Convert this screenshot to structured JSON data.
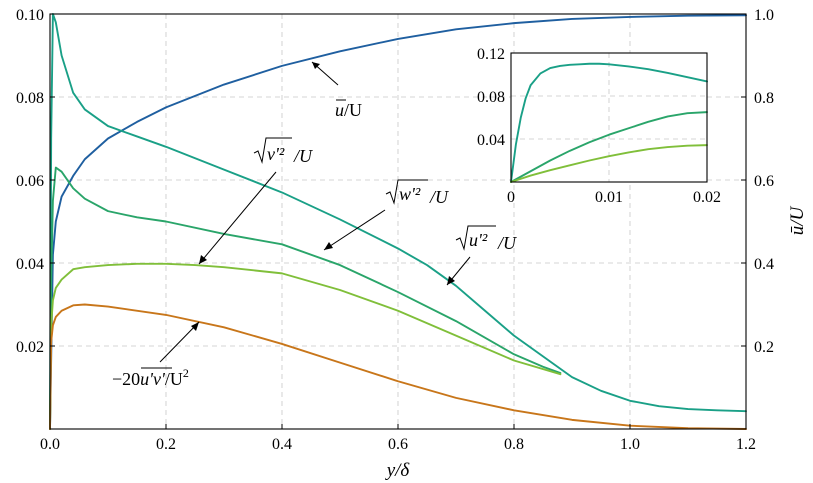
{
  "chart_data": [
    {
      "type": "line",
      "xlabel": "y/δ",
      "ylabel_right": "ū/U",
      "xlim": [
        0,
        1.2
      ],
      "ylim_left": [
        0,
        0.1
      ],
      "ylim_right": [
        0,
        1.0
      ],
      "xticks": [
        "0.0",
        "0.2",
        "0.4",
        "0.6",
        "0.8",
        "1.0",
        "1.2"
      ],
      "yticks_left": [
        "0.02",
        "0.04",
        "0.06",
        "0.08",
        "0.10"
      ],
      "yticks_right": [
        "0.2",
        "0.4",
        "0.6",
        "0.8",
        "1.0"
      ],
      "grid": true,
      "colors": {
        "u_mean": "#1f5fa0",
        "u_rms": "#1aa087",
        "v_rms": "#2aa56a",
        "w_rms": "#80bf3a",
        "shear": "#c8761a"
      },
      "series": [
        {
          "name": "ū/U",
          "axis": "right",
          "x": [
            0.0,
            0.005,
            0.01,
            0.02,
            0.04,
            0.06,
            0.1,
            0.15,
            0.2,
            0.3,
            0.4,
            0.5,
            0.6,
            0.7,
            0.8,
            0.9,
            1.0,
            1.1,
            1.2
          ],
          "y": [
            0.0,
            0.42,
            0.5,
            0.56,
            0.61,
            0.65,
            0.7,
            0.74,
            0.775,
            0.83,
            0.875,
            0.91,
            0.94,
            0.963,
            0.978,
            0.988,
            0.993,
            0.996,
            0.997
          ]
        },
        {
          "name": "√(u'²)/U",
          "axis": "left",
          "x": [
            0.0,
            0.002,
            0.005,
            0.01,
            0.02,
            0.04,
            0.06,
            0.1,
            0.15,
            0.2,
            0.3,
            0.4,
            0.5,
            0.6,
            0.65,
            0.7,
            0.75,
            0.8,
            0.85,
            0.9,
            0.95,
            1.0,
            1.05,
            1.1,
            1.15,
            1.2
          ],
          "y": [
            0.0,
            0.07,
            0.1,
            0.098,
            0.09,
            0.081,
            0.077,
            0.073,
            0.0705,
            0.068,
            0.0625,
            0.057,
            0.0505,
            0.0435,
            0.0395,
            0.0345,
            0.0285,
            0.0225,
            0.0175,
            0.0125,
            0.0092,
            0.0068,
            0.0055,
            0.0048,
            0.0045,
            0.0043
          ]
        },
        {
          "name": "√(v'²)/U",
          "axis": "left",
          "x": [
            0.0,
            0.002,
            0.005,
            0.01,
            0.02,
            0.04,
            0.06,
            0.1,
            0.15,
            0.2,
            0.3,
            0.4,
            0.5,
            0.6,
            0.7,
            0.75,
            0.8,
            0.85,
            0.88
          ],
          "y": [
            0.0,
            0.035,
            0.055,
            0.063,
            0.062,
            0.058,
            0.0555,
            0.0525,
            0.051,
            0.05,
            0.047,
            0.0445,
            0.0395,
            0.033,
            0.026,
            0.022,
            0.018,
            0.015,
            0.0135
          ]
        },
        {
          "name": "√(w'²)/U",
          "axis": "left",
          "x": [
            0.0,
            0.002,
            0.005,
            0.01,
            0.02,
            0.04,
            0.06,
            0.1,
            0.15,
            0.2,
            0.25,
            0.3,
            0.4,
            0.5,
            0.6,
            0.7,
            0.8,
            0.88
          ],
          "y": [
            0.0,
            0.025,
            0.031,
            0.034,
            0.036,
            0.0385,
            0.039,
            0.0395,
            0.0398,
            0.0398,
            0.0395,
            0.039,
            0.0375,
            0.0335,
            0.0285,
            0.0225,
            0.0165,
            0.0132
          ]
        },
        {
          "name": "−20u'v'/U²",
          "axis": "left",
          "x": [
            0.0,
            0.002,
            0.005,
            0.01,
            0.02,
            0.04,
            0.06,
            0.1,
            0.2,
            0.3,
            0.4,
            0.5,
            0.6,
            0.7,
            0.8,
            0.9,
            1.0,
            1.1,
            1.2
          ],
          "y": [
            0.0,
            0.021,
            0.025,
            0.027,
            0.0285,
            0.0298,
            0.03,
            0.0295,
            0.0275,
            0.0245,
            0.0205,
            0.016,
            0.0115,
            0.0075,
            0.0045,
            0.0022,
            0.0008,
            0.0002,
            0.0
          ]
        }
      ],
      "annotations": {
        "u_mean": {
          "text": "ū/U",
          "label": "u",
          "rest": "/U"
        },
        "v_rms": {
          "label": "v'²",
          "rest": "/U"
        },
        "w_rms": {
          "label": "w'²",
          "rest": "/U"
        },
        "u_rms": {
          "label": "u'²",
          "rest": "/U"
        },
        "shear": {
          "prefix": "−20",
          "label": "u'v'",
          "rest": "/U",
          "sup": "2"
        }
      },
      "inset": {
        "xlim": [
          0,
          0.02
        ],
        "ylim": [
          0,
          0.12
        ],
        "xticks": [
          "0",
          "0.01",
          "0.02"
        ],
        "yticks": [
          "0.04",
          "0.08",
          "0.12"
        ],
        "series": [
          {
            "ref": "u_rms",
            "x": [
              0.0,
              0.0005,
              0.001,
              0.0015,
              0.002,
              0.003,
              0.004,
              0.005,
              0.006,
              0.007,
              0.008,
              0.009,
              0.01,
              0.012,
              0.014,
              0.016,
              0.018,
              0.02
            ],
            "y": [
              0.0,
              0.035,
              0.06,
              0.078,
              0.09,
              0.101,
              0.106,
              0.108,
              0.109,
              0.1095,
              0.11,
              0.11,
              0.1095,
              0.1075,
              0.105,
              0.1015,
              0.0975,
              0.0935
            ]
          },
          {
            "ref": "v_rms",
            "x": [
              0.0,
              0.002,
              0.004,
              0.006,
              0.008,
              0.01,
              0.012,
              0.014,
              0.016,
              0.018,
              0.02
            ],
            "y": [
              0.0,
              0.01,
              0.02,
              0.029,
              0.037,
              0.044,
              0.05,
              0.056,
              0.061,
              0.064,
              0.065
            ]
          },
          {
            "ref": "w_rms",
            "x": [
              0.0,
              0.002,
              0.004,
              0.006,
              0.008,
              0.01,
              0.012,
              0.014,
              0.016,
              0.018,
              0.02
            ],
            "y": [
              0.0,
              0.006,
              0.011,
              0.0155,
              0.02,
              0.024,
              0.0275,
              0.0305,
              0.0325,
              0.0338,
              0.0343
            ]
          }
        ]
      }
    }
  ]
}
